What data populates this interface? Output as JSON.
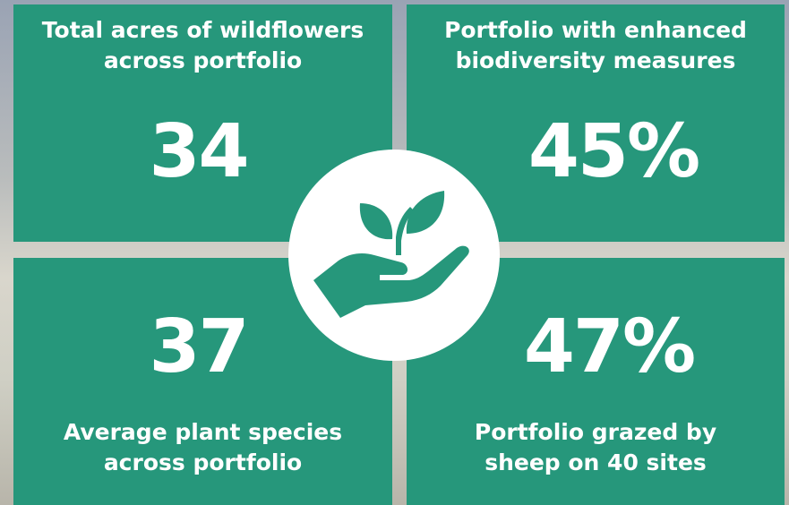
{
  "tiles": [
    {
      "label_lines": [
        "Total acres of wildflowers",
        "across portfolio"
      ],
      "value": "34"
    },
    {
      "label_lines": [
        "Portfolio with enhanced",
        "biodiversity measures"
      ],
      "value": "45%"
    },
    {
      "label_lines": [
        "Average plant species",
        "across portfolio"
      ],
      "value": "37"
    },
    {
      "label_lines": [
        "Portfolio grazed by",
        "sheep on 40 sites"
      ],
      "value": "47%"
    }
  ]
}
